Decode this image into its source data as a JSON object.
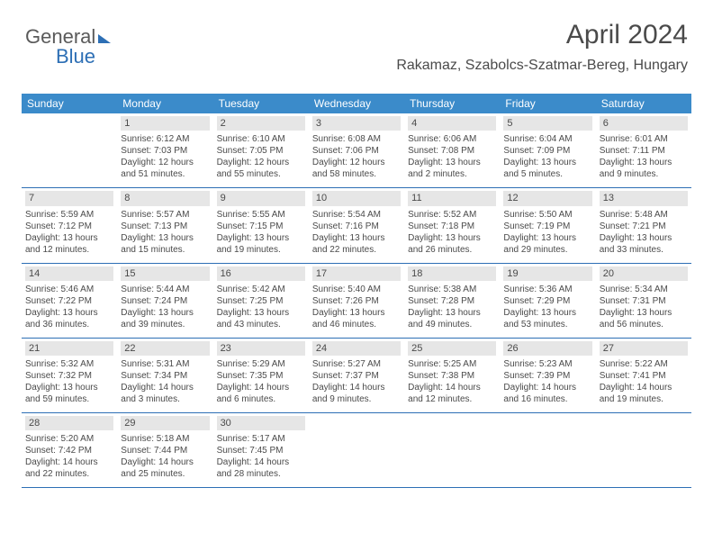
{
  "logo": {
    "text1": "General",
    "text2": "Blue"
  },
  "header": {
    "title": "April 2024",
    "subtitle": "Rakamaz, Szabolcs-Szatmar-Bereg, Hungary"
  },
  "colors": {
    "header_bar": "#3b8bca",
    "week_border": "#2d6fb5",
    "daynum_bg": "#e6e6e6",
    "text": "#4a4a4a",
    "logo_blue": "#2d6fb5"
  },
  "day_names": [
    "Sunday",
    "Monday",
    "Tuesday",
    "Wednesday",
    "Thursday",
    "Friday",
    "Saturday"
  ],
  "weeks": [
    [
      {
        "n": "",
        "sunrise": "",
        "sunset": "",
        "daylight": ""
      },
      {
        "n": "1",
        "sunrise": "Sunrise: 6:12 AM",
        "sunset": "Sunset: 7:03 PM",
        "daylight": "Daylight: 12 hours and 51 minutes."
      },
      {
        "n": "2",
        "sunrise": "Sunrise: 6:10 AM",
        "sunset": "Sunset: 7:05 PM",
        "daylight": "Daylight: 12 hours and 55 minutes."
      },
      {
        "n": "3",
        "sunrise": "Sunrise: 6:08 AM",
        "sunset": "Sunset: 7:06 PM",
        "daylight": "Daylight: 12 hours and 58 minutes."
      },
      {
        "n": "4",
        "sunrise": "Sunrise: 6:06 AM",
        "sunset": "Sunset: 7:08 PM",
        "daylight": "Daylight: 13 hours and 2 minutes."
      },
      {
        "n": "5",
        "sunrise": "Sunrise: 6:04 AM",
        "sunset": "Sunset: 7:09 PM",
        "daylight": "Daylight: 13 hours and 5 minutes."
      },
      {
        "n": "6",
        "sunrise": "Sunrise: 6:01 AM",
        "sunset": "Sunset: 7:11 PM",
        "daylight": "Daylight: 13 hours and 9 minutes."
      }
    ],
    [
      {
        "n": "7",
        "sunrise": "Sunrise: 5:59 AM",
        "sunset": "Sunset: 7:12 PM",
        "daylight": "Daylight: 13 hours and 12 minutes."
      },
      {
        "n": "8",
        "sunrise": "Sunrise: 5:57 AM",
        "sunset": "Sunset: 7:13 PM",
        "daylight": "Daylight: 13 hours and 15 minutes."
      },
      {
        "n": "9",
        "sunrise": "Sunrise: 5:55 AM",
        "sunset": "Sunset: 7:15 PM",
        "daylight": "Daylight: 13 hours and 19 minutes."
      },
      {
        "n": "10",
        "sunrise": "Sunrise: 5:54 AM",
        "sunset": "Sunset: 7:16 PM",
        "daylight": "Daylight: 13 hours and 22 minutes."
      },
      {
        "n": "11",
        "sunrise": "Sunrise: 5:52 AM",
        "sunset": "Sunset: 7:18 PM",
        "daylight": "Daylight: 13 hours and 26 minutes."
      },
      {
        "n": "12",
        "sunrise": "Sunrise: 5:50 AM",
        "sunset": "Sunset: 7:19 PM",
        "daylight": "Daylight: 13 hours and 29 minutes."
      },
      {
        "n": "13",
        "sunrise": "Sunrise: 5:48 AM",
        "sunset": "Sunset: 7:21 PM",
        "daylight": "Daylight: 13 hours and 33 minutes."
      }
    ],
    [
      {
        "n": "14",
        "sunrise": "Sunrise: 5:46 AM",
        "sunset": "Sunset: 7:22 PM",
        "daylight": "Daylight: 13 hours and 36 minutes."
      },
      {
        "n": "15",
        "sunrise": "Sunrise: 5:44 AM",
        "sunset": "Sunset: 7:24 PM",
        "daylight": "Daylight: 13 hours and 39 minutes."
      },
      {
        "n": "16",
        "sunrise": "Sunrise: 5:42 AM",
        "sunset": "Sunset: 7:25 PM",
        "daylight": "Daylight: 13 hours and 43 minutes."
      },
      {
        "n": "17",
        "sunrise": "Sunrise: 5:40 AM",
        "sunset": "Sunset: 7:26 PM",
        "daylight": "Daylight: 13 hours and 46 minutes."
      },
      {
        "n": "18",
        "sunrise": "Sunrise: 5:38 AM",
        "sunset": "Sunset: 7:28 PM",
        "daylight": "Daylight: 13 hours and 49 minutes."
      },
      {
        "n": "19",
        "sunrise": "Sunrise: 5:36 AM",
        "sunset": "Sunset: 7:29 PM",
        "daylight": "Daylight: 13 hours and 53 minutes."
      },
      {
        "n": "20",
        "sunrise": "Sunrise: 5:34 AM",
        "sunset": "Sunset: 7:31 PM",
        "daylight": "Daylight: 13 hours and 56 minutes."
      }
    ],
    [
      {
        "n": "21",
        "sunrise": "Sunrise: 5:32 AM",
        "sunset": "Sunset: 7:32 PM",
        "daylight": "Daylight: 13 hours and 59 minutes."
      },
      {
        "n": "22",
        "sunrise": "Sunrise: 5:31 AM",
        "sunset": "Sunset: 7:34 PM",
        "daylight": "Daylight: 14 hours and 3 minutes."
      },
      {
        "n": "23",
        "sunrise": "Sunrise: 5:29 AM",
        "sunset": "Sunset: 7:35 PM",
        "daylight": "Daylight: 14 hours and 6 minutes."
      },
      {
        "n": "24",
        "sunrise": "Sunrise: 5:27 AM",
        "sunset": "Sunset: 7:37 PM",
        "daylight": "Daylight: 14 hours and 9 minutes."
      },
      {
        "n": "25",
        "sunrise": "Sunrise: 5:25 AM",
        "sunset": "Sunset: 7:38 PM",
        "daylight": "Daylight: 14 hours and 12 minutes."
      },
      {
        "n": "26",
        "sunrise": "Sunrise: 5:23 AM",
        "sunset": "Sunset: 7:39 PM",
        "daylight": "Daylight: 14 hours and 16 minutes."
      },
      {
        "n": "27",
        "sunrise": "Sunrise: 5:22 AM",
        "sunset": "Sunset: 7:41 PM",
        "daylight": "Daylight: 14 hours and 19 minutes."
      }
    ],
    [
      {
        "n": "28",
        "sunrise": "Sunrise: 5:20 AM",
        "sunset": "Sunset: 7:42 PM",
        "daylight": "Daylight: 14 hours and 22 minutes."
      },
      {
        "n": "29",
        "sunrise": "Sunrise: 5:18 AM",
        "sunset": "Sunset: 7:44 PM",
        "daylight": "Daylight: 14 hours and 25 minutes."
      },
      {
        "n": "30",
        "sunrise": "Sunrise: 5:17 AM",
        "sunset": "Sunset: 7:45 PM",
        "daylight": "Daylight: 14 hours and 28 minutes."
      },
      {
        "n": "",
        "sunrise": "",
        "sunset": "",
        "daylight": ""
      },
      {
        "n": "",
        "sunrise": "",
        "sunset": "",
        "daylight": ""
      },
      {
        "n": "",
        "sunrise": "",
        "sunset": "",
        "daylight": ""
      },
      {
        "n": "",
        "sunrise": "",
        "sunset": "",
        "daylight": ""
      }
    ]
  ]
}
